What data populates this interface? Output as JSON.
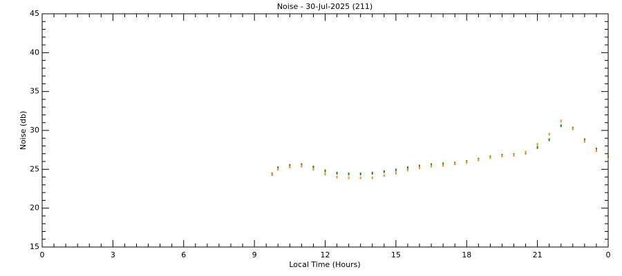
{
  "chart_data": {
    "type": "scatter",
    "title": "Noise - 30-Jul-2025 (211)",
    "xlabel": "Local Time (Hours)",
    "ylabel": "Noise (db)",
    "xlim": [
      0,
      24
    ],
    "xticks": [
      0,
      3,
      6,
      9,
      12,
      15,
      18,
      21,
      {
        "value": 24,
        "label": "0"
      }
    ],
    "ylim": [
      15,
      45
    ],
    "yticks": [
      15,
      20,
      25,
      30,
      35,
      40,
      45
    ],
    "x": [
      9.75,
      10,
      10.5,
      11,
      11.5,
      12,
      12.5,
      13,
      13.5,
      14,
      14.5,
      15,
      15.5,
      16,
      16.5,
      17,
      17.5,
      18,
      18.5,
      19,
      19.5,
      20,
      20.5,
      21,
      21.5,
      22,
      22.5,
      23,
      23.5,
      24
    ],
    "series": [
      {
        "color": "#1a8a1a",
        "values": [
          24.4,
          25.2,
          25.5,
          25.6,
          25.3,
          24.8,
          24.5,
          24.4,
          24.4,
          24.5,
          24.7,
          24.9,
          25.2,
          25.4,
          25.6,
          25.7,
          25.8,
          26.0,
          26.3,
          26.6,
          26.8,
          26.9,
          27.1,
          27.8,
          28.8,
          30.6,
          30.3,
          28.8,
          27.6,
          26.5
        ]
      },
      {
        "color": "#ff8c1a",
        "values": [
          24.3,
          25.0,
          25.3,
          25.4,
          25.0,
          24.4,
          24.0,
          23.9,
          23.9,
          23.9,
          24.2,
          24.5,
          24.9,
          25.2,
          25.4,
          25.5,
          25.7,
          25.9,
          26.2,
          26.5,
          26.7,
          26.8,
          27.2,
          28.2,
          29.5,
          31.2,
          30.2,
          28.6,
          27.4,
          26.3
        ]
      }
    ]
  }
}
